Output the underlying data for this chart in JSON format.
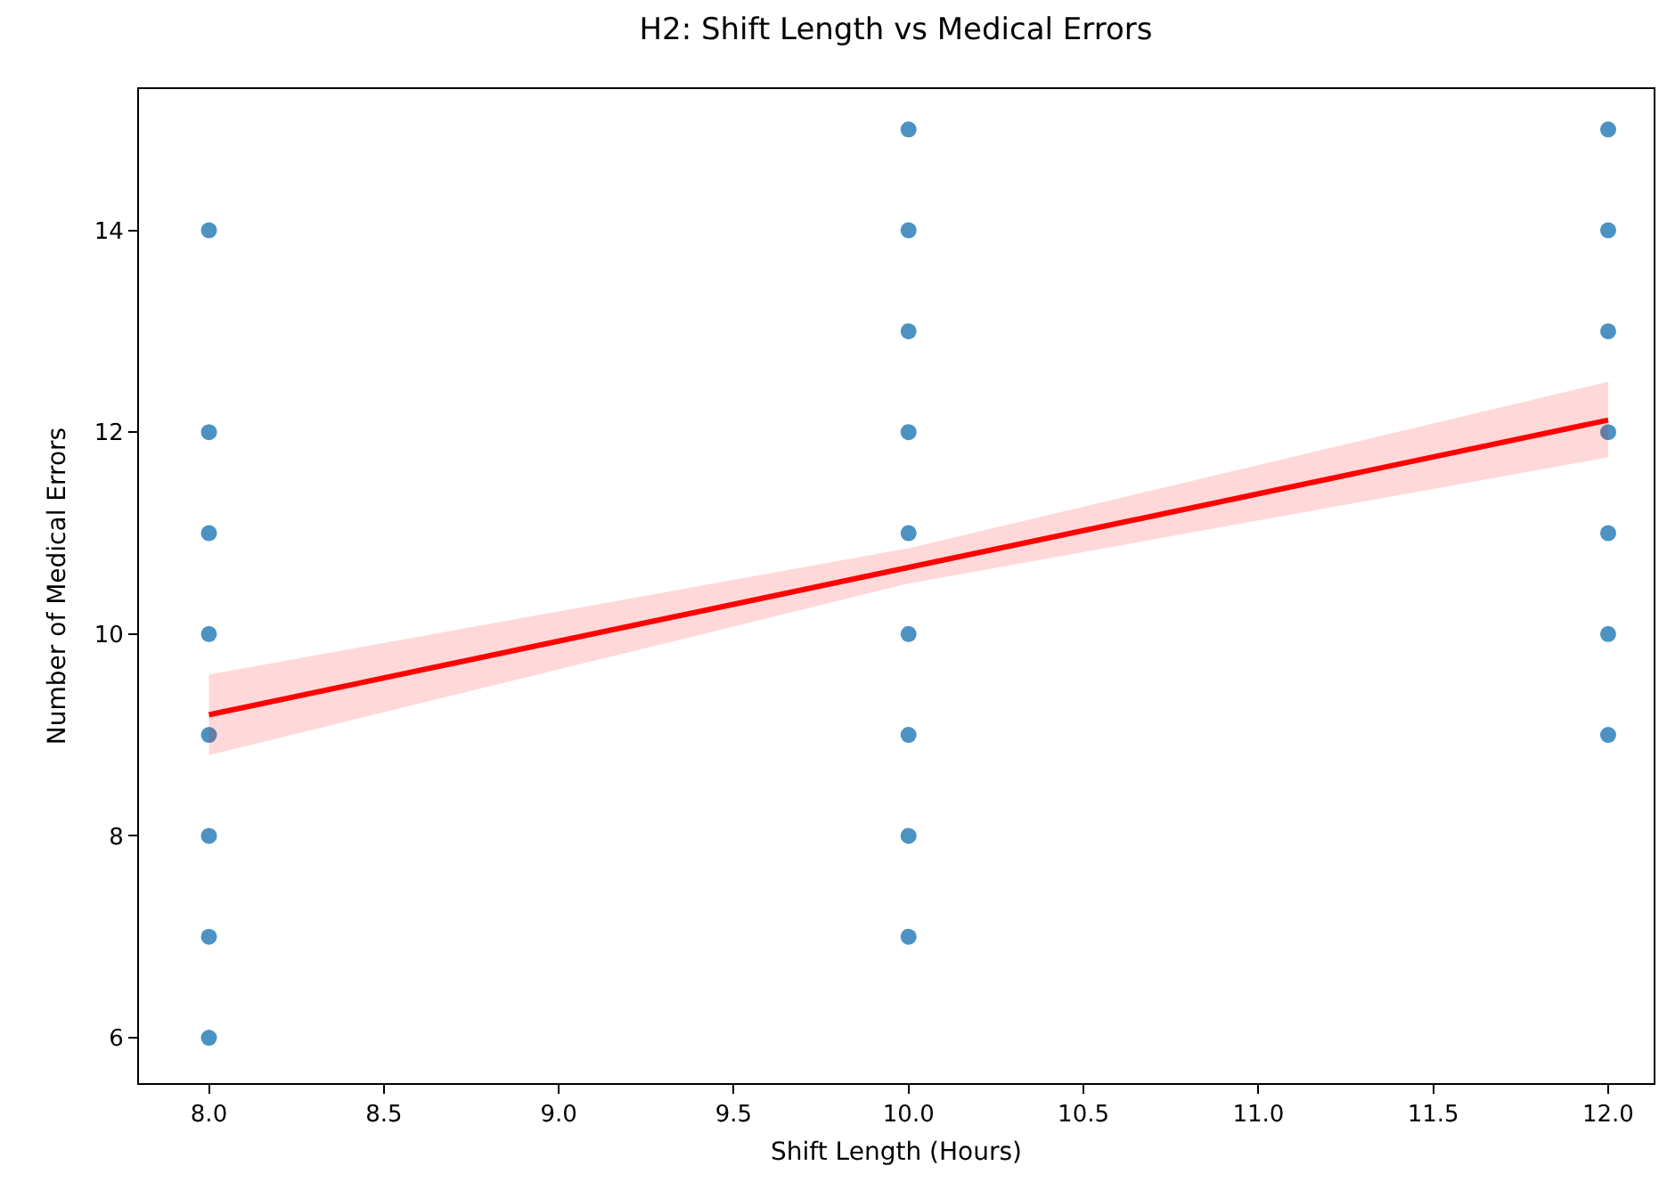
{
  "chart_data": {
    "type": "scatter",
    "title": "H2: Shift Length vs Medical Errors",
    "xlabel": "Shift Length (Hours)",
    "ylabel": "Number of Medical Errors",
    "xlim": [
      7.8,
      12.13
    ],
    "ylim": [
      5.55,
      15.4
    ],
    "xticks": [
      {
        "value": 8,
        "label": "8.0"
      },
      {
        "value": 8.5,
        "label": "8.5"
      },
      {
        "value": 9,
        "label": "9.0"
      },
      {
        "value": 9.5,
        "label": "9.5"
      },
      {
        "value": 10,
        "label": "10.0"
      },
      {
        "value": 10.5,
        "label": "10.5"
      },
      {
        "value": 11,
        "label": "11.0"
      },
      {
        "value": 11.5,
        "label": "11.5"
      },
      {
        "value": 12,
        "label": "12.0"
      }
    ],
    "yticks": [
      6,
      8,
      10,
      12,
      14
    ],
    "grid": false,
    "series": [
      {
        "marker": "circle",
        "color": "#1f77b4",
        "x": [
          8,
          8,
          8,
          8,
          8,
          8,
          8,
          8,
          10,
          10,
          10,
          10,
          10,
          10,
          10,
          10,
          10,
          12,
          12,
          12,
          12,
          12,
          12,
          12
        ],
        "values": [
          6,
          7,
          8,
          9,
          10,
          11,
          12,
          14,
          7,
          8,
          9,
          10,
          11,
          12,
          13,
          14,
          15,
          9,
          10,
          11,
          12,
          13,
          14,
          15
        ]
      },
      {
        "type": "line",
        "color": "#ff0000",
        "x": [
          8,
          10,
          12
        ],
        "values": [
          9.2,
          10.66,
          12.12
        ],
        "lower": [
          8.8,
          10.5,
          11.75
        ],
        "upper": [
          9.6,
          10.85,
          12.5
        ]
      }
    ]
  }
}
